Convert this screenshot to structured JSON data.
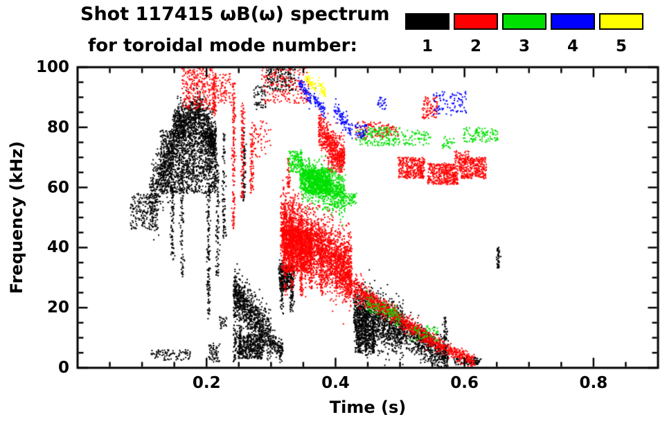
{
  "chart_data": {
    "type": "scatter",
    "title_line1": "Shot 117415 ωB(ω) spectrum",
    "title_line2": "for toroidal mode number:",
    "xlabel": "Time (s)",
    "ylabel": "Frequency (kHz)",
    "xlim": [
      0,
      0.9
    ],
    "ylim": [
      0,
      100
    ],
    "grid": false,
    "legend_position": "top-right",
    "x_ticks": [
      {
        "v": 0.2,
        "label": "0.2"
      },
      {
        "v": 0.4,
        "label": "0.4"
      },
      {
        "v": 0.6,
        "label": "0.6"
      },
      {
        "v": 0.8,
        "label": "0.8"
      }
    ],
    "y_ticks": [
      {
        "v": 0,
        "label": "0"
      },
      {
        "v": 20,
        "label": "20"
      },
      {
        "v": 40,
        "label": "40"
      },
      {
        "v": 60,
        "label": "60"
      },
      {
        "v": 80,
        "label": "80"
      },
      {
        "v": 100,
        "label": "100"
      }
    ],
    "x_minor_step": 0.05,
    "y_minor_step": 5,
    "series": [
      {
        "label": "1",
        "color": "#000000"
      },
      {
        "label": "2",
        "color": "#ff0000"
      },
      {
        "label": "3",
        "color": "#00e000"
      },
      {
        "label": "4",
        "color": "#0000ff"
      },
      {
        "label": "5",
        "color": "#ffff00"
      }
    ],
    "clusters": [
      {
        "m": 1,
        "type": "blob",
        "t": [
          0.082,
          0.125
        ],
        "f": [
          46,
          58
        ],
        "n": 200
      },
      {
        "m": 1,
        "type": "band",
        "t": [
          0.112,
          0.15
        ],
        "f": [
          56,
          72
        ],
        "s": 5,
        "n": 420
      },
      {
        "m": 1,
        "type": "band",
        "t": [
          0.148,
          0.19
        ],
        "f": [
          80,
          84
        ],
        "s": 3.5,
        "n": 650
      },
      {
        "m": 1,
        "type": "band",
        "t": [
          0.19,
          0.215
        ],
        "f": [
          83,
          74
        ],
        "s": 4,
        "n": 420
      },
      {
        "m": 1,
        "type": "blob",
        "t": [
          0.128,
          0.215
        ],
        "f": [
          58,
          79
        ],
        "n": 1250
      },
      {
        "m": 1,
        "type": "vline",
        "t": 0.147,
        "f": [
          36,
          60
        ],
        "n": 90
      },
      {
        "m": 1,
        "type": "vline",
        "t": 0.162,
        "f": [
          30,
          70
        ],
        "n": 110
      },
      {
        "m": 1,
        "type": "vline",
        "t": 0.203,
        "f": [
          16,
          60
        ],
        "n": 140
      },
      {
        "m": 1,
        "type": "vline",
        "t": 0.217,
        "f": [
          30,
          72
        ],
        "n": 100
      },
      {
        "m": 1,
        "type": "vline",
        "t": 0.227,
        "f": [
          42,
          78
        ],
        "n": 95
      },
      {
        "m": 1,
        "type": "vline",
        "t": 0.244,
        "f": [
          2,
          30
        ],
        "n": 110
      },
      {
        "m": 1,
        "type": "vline",
        "t": 0.252,
        "f": [
          4,
          26
        ],
        "n": 90
      },
      {
        "m": 1,
        "type": "band",
        "t": [
          0.243,
          0.3
        ],
        "f": [
          26,
          9
        ],
        "s": 3.8,
        "n": 750
      },
      {
        "m": 1,
        "type": "blob",
        "t": [
          0.248,
          0.288
        ],
        "f": [
          3,
          11
        ],
        "n": 380
      },
      {
        "m": 1,
        "type": "band",
        "t": [
          0.3,
          0.318
        ],
        "f": [
          9,
          5.5
        ],
        "s": 1.8,
        "n": 130
      },
      {
        "m": 1,
        "type": "blob",
        "t": [
          0.312,
          0.336
        ],
        "f": [
          26,
          34
        ],
        "n": 300
      },
      {
        "m": 1,
        "type": "vline",
        "t": 0.317,
        "f": [
          18,
          36
        ],
        "n": 70
      },
      {
        "m": 1,
        "type": "vline",
        "t": 0.332,
        "f": [
          18,
          27
        ],
        "n": 45
      },
      {
        "m": 1,
        "type": "blob",
        "t": [
          0.293,
          0.338
        ],
        "f": [
          92,
          100
        ],
        "n": 150
      },
      {
        "m": 1,
        "type": "blob",
        "t": [
          0.273,
          0.292
        ],
        "f": [
          86,
          94
        ],
        "n": 55
      },
      {
        "m": 1,
        "type": "band",
        "t": [
          0.428,
          0.505
        ],
        "f": [
          19,
          12
        ],
        "s": 4.5,
        "n": 1150
      },
      {
        "m": 1,
        "type": "band",
        "t": [
          0.505,
          0.575
        ],
        "f": [
          12,
          3.5
        ],
        "s": 3,
        "n": 620
      },
      {
        "m": 1,
        "type": "blob",
        "t": [
          0.43,
          0.462
        ],
        "f": [
          5,
          15
        ],
        "n": 260
      },
      {
        "m": 1,
        "type": "vline",
        "t": 0.437,
        "f": [
          5,
          21
        ],
        "n": 80
      },
      {
        "m": 1,
        "type": "vline",
        "t": 0.447,
        "f": [
          4,
          19
        ],
        "n": 80
      },
      {
        "m": 1,
        "type": "vline",
        "t": 0.458,
        "f": [
          5,
          17
        ],
        "n": 60
      },
      {
        "m": 1,
        "type": "vline",
        "t": 0.57,
        "f": [
          3,
          17
        ],
        "n": 70
      },
      {
        "m": 1,
        "type": "blob",
        "t": [
          0.113,
          0.175
        ],
        "f": [
          2.5,
          6
        ],
        "n": 90
      },
      {
        "m": 1,
        "type": "blob",
        "t": [
          0.203,
          0.22
        ],
        "f": [
          2,
          8
        ],
        "n": 60
      },
      {
        "m": 1,
        "type": "vline",
        "t": 0.652,
        "f": [
          33,
          40
        ],
        "n": 50
      },
      {
        "m": 1,
        "type": "blob",
        "t": [
          0.583,
          0.625
        ],
        "f": [
          1,
          3.5
        ],
        "n": 90
      },
      {
        "m": 1,
        "type": "vline",
        "t": 0.258,
        "f": [
          55,
          80
        ],
        "n": 80
      },
      {
        "m": 1,
        "type": "blob",
        "t": [
          0.221,
          0.231
        ],
        "f": [
          13,
          17
        ],
        "n": 25
      },
      {
        "m": 2,
        "type": "blob",
        "t": [
          0.162,
          0.212
        ],
        "f": [
          86,
          100
        ],
        "n": 280
      },
      {
        "m": 2,
        "type": "blob",
        "t": [
          0.213,
          0.237
        ],
        "f": [
          88,
          98
        ],
        "n": 80
      },
      {
        "m": 2,
        "type": "vline",
        "t": 0.212,
        "f": [
          84,
          97
        ],
        "n": 60
      },
      {
        "m": 2,
        "type": "vline",
        "t": 0.242,
        "f": [
          46,
          95
        ],
        "n": 160
      },
      {
        "m": 2,
        "type": "vline",
        "t": 0.256,
        "f": [
          56,
          88
        ],
        "n": 110
      },
      {
        "m": 2,
        "type": "vline",
        "t": 0.27,
        "f": [
          58,
          78
        ],
        "n": 70
      },
      {
        "m": 2,
        "type": "blob",
        "t": [
          0.285,
          0.36
        ],
        "f": [
          88,
          100
        ],
        "n": 190
      },
      {
        "m": 2,
        "type": "blob",
        "t": [
          0.268,
          0.3
        ],
        "f": [
          70,
          82
        ],
        "n": 60
      },
      {
        "m": 2,
        "type": "band",
        "t": [
          0.315,
          0.425
        ],
        "f": [
          47,
          33
        ],
        "s": 5.5,
        "n": 2600
      },
      {
        "m": 2,
        "type": "blob",
        "t": [
          0.318,
          0.362
        ],
        "f": [
          32,
          46
        ],
        "n": 950
      },
      {
        "m": 2,
        "type": "vline",
        "t": 0.322,
        "f": [
          24,
          56
        ],
        "n": 110
      },
      {
        "m": 2,
        "type": "vline",
        "t": 0.333,
        "f": [
          26,
          54
        ],
        "n": 100
      },
      {
        "m": 2,
        "type": "vline",
        "t": 0.347,
        "f": [
          24,
          50
        ],
        "n": 100
      },
      {
        "m": 2,
        "type": "vline",
        "t": 0.362,
        "f": [
          26,
          48
        ],
        "n": 90
      },
      {
        "m": 2,
        "type": "vline",
        "t": 0.378,
        "f": [
          24,
          44
        ],
        "n": 80
      },
      {
        "m": 2,
        "type": "band",
        "t": [
          0.4,
          0.443
        ],
        "f": [
          30,
          25
        ],
        "s": 2.5,
        "n": 280
      },
      {
        "m": 2,
        "type": "band",
        "t": [
          0.374,
          0.414
        ],
        "f": [
          79,
          70
        ],
        "s": 2.8,
        "n": 480
      },
      {
        "m": 2,
        "type": "blob",
        "t": [
          0.388,
          0.414
        ],
        "f": [
          65,
          71
        ],
        "n": 130
      },
      {
        "m": 2,
        "type": "band",
        "t": [
          0.443,
          0.5
        ],
        "f": [
          24,
          16
        ],
        "s": 1.4,
        "n": 420
      },
      {
        "m": 2,
        "type": "band",
        "t": [
          0.5,
          0.565
        ],
        "f": [
          16,
          7
        ],
        "s": 1.3,
        "n": 380
      },
      {
        "m": 2,
        "type": "band",
        "t": [
          0.565,
          0.615
        ],
        "f": [
          7,
          2
        ],
        "s": 1.1,
        "n": 240
      },
      {
        "m": 2,
        "type": "blob",
        "t": [
          0.497,
          0.538
        ],
        "f": [
          63,
          70
        ],
        "n": 330
      },
      {
        "m": 2,
        "type": "blob",
        "t": [
          0.543,
          0.59
        ],
        "f": [
          61,
          68
        ],
        "n": 390
      },
      {
        "m": 2,
        "type": "blob",
        "t": [
          0.592,
          0.634
        ],
        "f": [
          63,
          70
        ],
        "n": 310
      },
      {
        "m": 2,
        "type": "blob",
        "t": [
          0.585,
          0.607
        ],
        "f": [
          68,
          72
        ],
        "n": 60
      },
      {
        "m": 2,
        "type": "blob",
        "t": [
          0.535,
          0.558
        ],
        "f": [
          83,
          90
        ],
        "n": 90
      },
      {
        "m": 2,
        "type": "blob",
        "t": [
          0.43,
          0.476
        ],
        "f": [
          76,
          82
        ],
        "n": 90
      },
      {
        "m": 2,
        "type": "blob",
        "t": [
          0.478,
          0.497
        ],
        "f": [
          77,
          81
        ],
        "n": 40
      },
      {
        "m": 2,
        "type": "vline",
        "t": 0.327,
        "f": [
          60,
          70
        ],
        "n": 40
      },
      {
        "m": 3,
        "type": "band",
        "t": [
          0.345,
          0.415
        ],
        "f": [
          64,
          57
        ],
        "s": 3.2,
        "n": 1050
      },
      {
        "m": 3,
        "type": "blob",
        "t": [
          0.352,
          0.392
        ],
        "f": [
          58,
          66
        ],
        "n": 480
      },
      {
        "m": 3,
        "type": "blob",
        "t": [
          0.328,
          0.348
        ],
        "f": [
          65,
          72
        ],
        "n": 130
      },
      {
        "m": 3,
        "type": "blob",
        "t": [
          0.432,
          0.5
        ],
        "f": [
          74,
          80
        ],
        "n": 170
      },
      {
        "m": 3,
        "type": "blob",
        "t": [
          0.503,
          0.548
        ],
        "f": [
          74,
          79
        ],
        "n": 70
      },
      {
        "m": 3,
        "type": "blob",
        "t": [
          0.598,
          0.652
        ],
        "f": [
          75,
          80
        ],
        "n": 110
      },
      {
        "m": 3,
        "type": "band",
        "t": [
          0.445,
          0.5
        ],
        "f": [
          22,
          16.5
        ],
        "s": 1.5,
        "n": 110
      },
      {
        "m": 3,
        "type": "blob",
        "t": [
          0.515,
          0.56
        ],
        "f": [
          9,
          14
        ],
        "n": 60
      },
      {
        "m": 3,
        "type": "blob",
        "t": [
          0.415,
          0.432
        ],
        "f": [
          54,
          58
        ],
        "n": 50
      },
      {
        "m": 3,
        "type": "blob",
        "t": [
          0.565,
          0.585
        ],
        "f": [
          73,
          77
        ],
        "n": 30
      },
      {
        "m": 4,
        "type": "band",
        "t": [
          0.343,
          0.362
        ],
        "f": [
          95,
          89
        ],
        "s": 1.2,
        "n": 70
      },
      {
        "m": 4,
        "type": "band",
        "t": [
          0.366,
          0.384
        ],
        "f": [
          90,
          85
        ],
        "s": 1.2,
        "n": 60
      },
      {
        "m": 4,
        "type": "band",
        "t": [
          0.398,
          0.426
        ],
        "f": [
          86,
          79
        ],
        "s": 1.5,
        "n": 90
      },
      {
        "m": 4,
        "type": "blob",
        "t": [
          0.43,
          0.448
        ],
        "f": [
          76,
          81
        ],
        "n": 40
      },
      {
        "m": 4,
        "type": "blob",
        "t": [
          0.55,
          0.603
        ],
        "f": [
          84,
          92
        ],
        "n": 90
      },
      {
        "m": 4,
        "type": "blob",
        "t": [
          0.465,
          0.478
        ],
        "f": [
          86,
          90
        ],
        "n": 25
      },
      {
        "m": 5,
        "type": "band",
        "t": [
          0.353,
          0.369
        ],
        "f": [
          97,
          93
        ],
        "s": 1.0,
        "n": 50
      },
      {
        "m": 5,
        "type": "band",
        "t": [
          0.372,
          0.385
        ],
        "f": [
          95,
          91
        ],
        "s": 1.0,
        "n": 40
      }
    ]
  }
}
